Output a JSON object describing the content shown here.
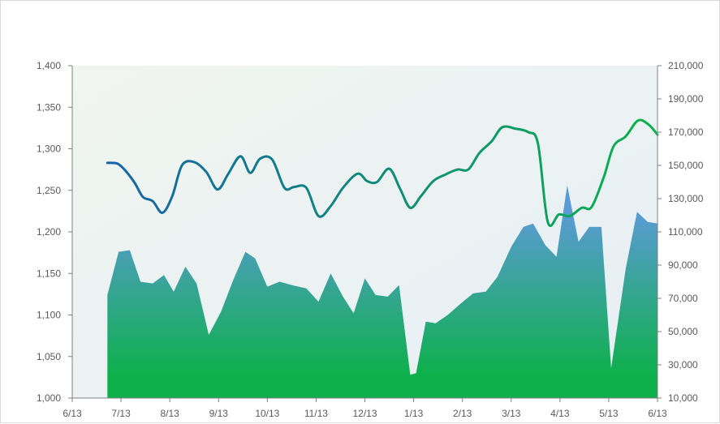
{
  "chart_data": {
    "type": "line+area",
    "title": "",
    "x_tick_labels": [
      "6/13",
      "7/13",
      "8/13",
      "9/13",
      "10/13",
      "11/13",
      "12/13",
      "1/13",
      "2/13",
      "3/13",
      "4/13",
      "5/13",
      "6/13"
    ],
    "y_left": {
      "min": 1000,
      "max": 1400,
      "step": 50,
      "tick_labels": [
        "1,000",
        "1,050",
        "1,100",
        "1,150",
        "1,200",
        "1,250",
        "1,300",
        "1,350",
        "1,400"
      ]
    },
    "y_right": {
      "min": 10000,
      "max": 210000,
      "step": 20000,
      "tick_labels": [
        "10,000",
        "30,000",
        "50,000",
        "70,000",
        "90,000",
        "110,000",
        "130,000",
        "150,000",
        "170,000",
        "190,000",
        "210,000"
      ]
    },
    "gridlines": false,
    "legend": "none",
    "x_domain": [
      0,
      12
    ],
    "line_series": {
      "axis": "left",
      "color_start": "#1565a8",
      "color_end": "#0db04b",
      "points": [
        [
          0.72,
          1283
        ],
        [
          0.93,
          1282
        ],
        [
          1.1,
          1273
        ],
        [
          1.28,
          1259
        ],
        [
          1.45,
          1242
        ],
        [
          1.65,
          1237
        ],
        [
          1.85,
          1223
        ],
        [
          2.05,
          1243
        ],
        [
          2.25,
          1280
        ],
        [
          2.5,
          1284
        ],
        [
          2.75,
          1272
        ],
        [
          2.98,
          1251
        ],
        [
          3.2,
          1270
        ],
        [
          3.45,
          1291
        ],
        [
          3.65,
          1271
        ],
        [
          3.85,
          1288
        ],
        [
          4.1,
          1287
        ],
        [
          4.35,
          1253
        ],
        [
          4.55,
          1254
        ],
        [
          4.8,
          1253
        ],
        [
          5.05,
          1219
        ],
        [
          5.3,
          1231
        ],
        [
          5.55,
          1253
        ],
        [
          5.85,
          1270
        ],
        [
          6.05,
          1261
        ],
        [
          6.25,
          1260
        ],
        [
          6.5,
          1276
        ],
        [
          6.72,
          1252
        ],
        [
          6.93,
          1229
        ],
        [
          7.15,
          1243
        ],
        [
          7.4,
          1261
        ],
        [
          7.65,
          1269
        ],
        [
          7.9,
          1275
        ],
        [
          8.12,
          1275
        ],
        [
          8.35,
          1295
        ],
        [
          8.6,
          1309
        ],
        [
          8.82,
          1326
        ],
        [
          9.1,
          1324
        ],
        [
          9.35,
          1320
        ],
        [
          9.55,
          1306
        ],
        [
          9.75,
          1212
        ],
        [
          9.98,
          1221
        ],
        [
          10.2,
          1219
        ],
        [
          10.45,
          1229
        ],
        [
          10.65,
          1230
        ],
        [
          10.9,
          1266
        ],
        [
          11.1,
          1303
        ],
        [
          11.35,
          1315
        ],
        [
          11.6,
          1334
        ],
        [
          11.82,
          1329
        ],
        [
          12.0,
          1317
        ]
      ]
    },
    "area_series": {
      "axis": "right",
      "color_top": "#5b9bd5",
      "color_bottom": "#0db04b",
      "points": [
        [
          0.72,
          72000
        ],
        [
          0.95,
          98000
        ],
        [
          1.18,
          99000
        ],
        [
          1.4,
          80000
        ],
        [
          1.65,
          79000
        ],
        [
          1.88,
          84000
        ],
        [
          2.08,
          74000
        ],
        [
          2.32,
          89000
        ],
        [
          2.55,
          79000
        ],
        [
          2.8,
          48000
        ],
        [
          3.05,
          62000
        ],
        [
          3.3,
          81000
        ],
        [
          3.55,
          98000
        ],
        [
          3.75,
          94000
        ],
        [
          4.0,
          77000
        ],
        [
          4.25,
          80000
        ],
        [
          4.5,
          78000
        ],
        [
          4.8,
          76000
        ],
        [
          5.05,
          68000
        ],
        [
          5.3,
          85000
        ],
        [
          5.55,
          71000
        ],
        [
          5.77,
          61000
        ],
        [
          6.0,
          82000
        ],
        [
          6.22,
          72000
        ],
        [
          6.47,
          71000
        ],
        [
          6.7,
          78000
        ],
        [
          6.93,
          24000
        ],
        [
          7.05,
          25000
        ],
        [
          7.25,
          56000
        ],
        [
          7.45,
          55000
        ],
        [
          7.7,
          60000
        ],
        [
          7.97,
          67000
        ],
        [
          8.22,
          73000
        ],
        [
          8.48,
          74000
        ],
        [
          8.72,
          83000
        ],
        [
          9.0,
          101000
        ],
        [
          9.25,
          113000
        ],
        [
          9.45,
          115000
        ],
        [
          9.7,
          102000
        ],
        [
          9.93,
          95000
        ],
        [
          10.15,
          138000
        ],
        [
          10.38,
          104000
        ],
        [
          10.6,
          113000
        ],
        [
          10.85,
          113000
        ],
        [
          11.05,
          28000
        ],
        [
          11.35,
          88000
        ],
        [
          11.58,
          122000
        ],
        [
          11.8,
          116000
        ],
        [
          12.0,
          115000
        ],
        [
          12.25,
          114000
        ],
        [
          12.5,
          99000
        ]
      ]
    }
  }
}
